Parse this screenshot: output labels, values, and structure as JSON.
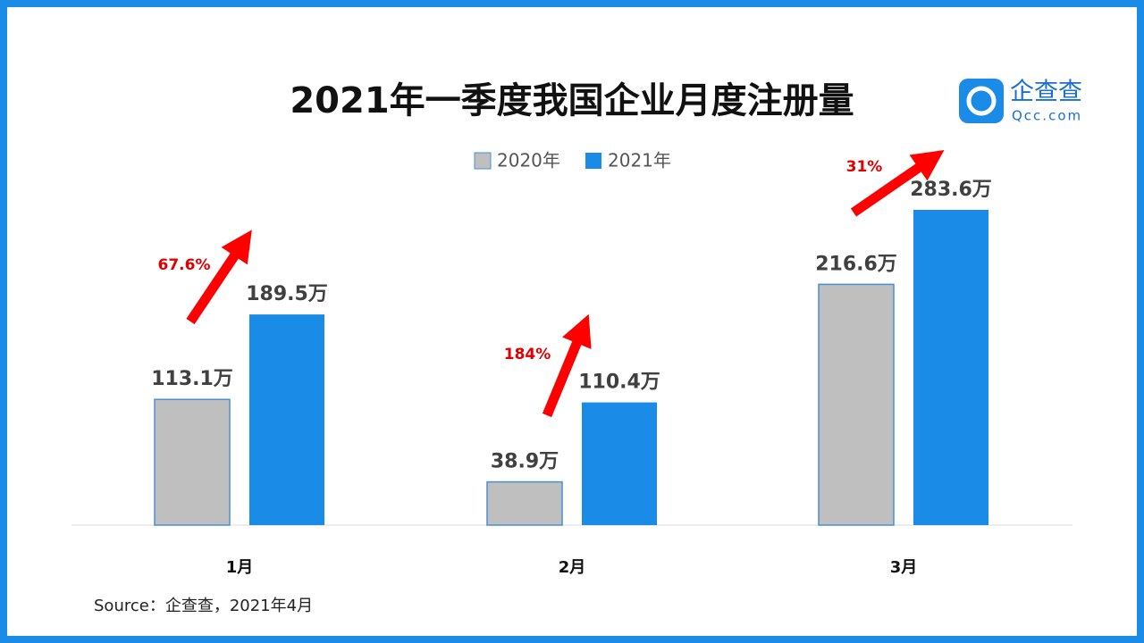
{
  "chart_data": {
    "type": "bar",
    "title": "2021年一季度我国企业月度注册量",
    "categories": [
      "1月",
      "2月",
      "3月"
    ],
    "series": [
      {
        "name": "2020年",
        "color": "#bfbfbf",
        "values": [
          113.1,
          38.9,
          216.6
        ],
        "value_labels": [
          "113.1万",
          "38.9万",
          "216.6万"
        ]
      },
      {
        "name": "2021年",
        "color": "#1a8be6",
        "values": [
          189.5,
          110.4,
          283.6
        ],
        "value_labels": [
          "189.5万",
          "110.4万",
          "283.6万"
        ]
      }
    ],
    "annotations": [
      "67.6%",
      "184%",
      "31%"
    ],
    "source": "Source：企查查，2021年4月",
    "logo": {
      "name": "企查查",
      "url": "Qcc.com"
    }
  }
}
